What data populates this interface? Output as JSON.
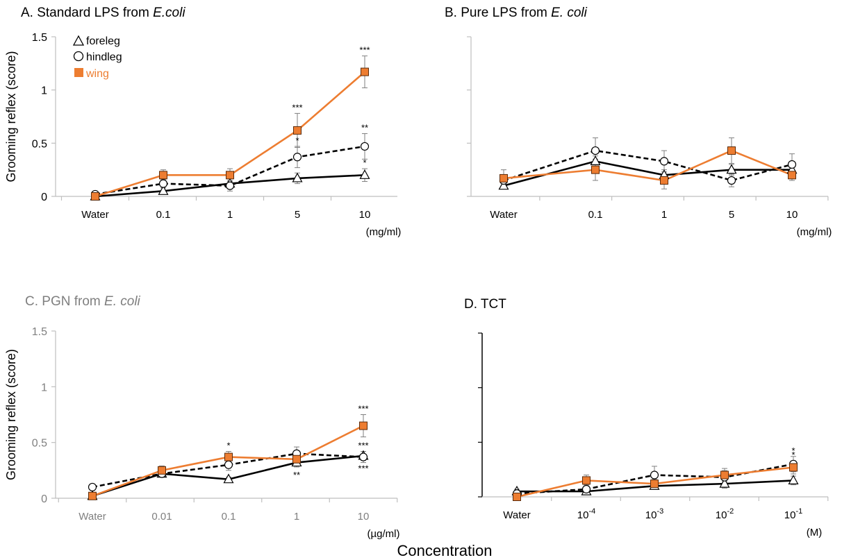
{
  "figure": {
    "x_axis_title": "Concentration",
    "colors": {
      "wing": "#ED7D31",
      "black": "#000000",
      "grey": "#7F7F7F",
      "axis": "#BFBFBF",
      "errbar": "#7F7F7F"
    }
  },
  "legend": {
    "placement": "top-left of panel A",
    "items": [
      {
        "label": "foreleg",
        "marker": "triangle-open",
        "color": "#000000"
      },
      {
        "label": "hindleg",
        "marker": "circle-open",
        "color": "#000000"
      },
      {
        "label": "wing",
        "marker": "square-filled",
        "color": "#ED7D31"
      }
    ]
  },
  "chart_data": [
    {
      "panel": "A",
      "title": "A. Standard LPS from ",
      "title_italic": "E.coli",
      "title_color": "#000000",
      "type": "line",
      "categories": [
        "Water",
        "0.1",
        "1",
        "5",
        "10"
      ],
      "unit_label": "(mg/ml)",
      "ylabel": "Grooming reflex (score)",
      "ylim": [
        0,
        1.5
      ],
      "yticks": [
        "0",
        "0.5",
        "1",
        "1.5"
      ],
      "show_y_tick_labels": true,
      "grid": false,
      "series": [
        {
          "name": "foreleg",
          "values": [
            0,
            0.05,
            0.12,
            0.17,
            0.2
          ],
          "err": [
            0,
            0.03,
            0.03,
            0.05,
            0.06
          ],
          "stars": [
            "",
            "",
            "",
            "",
            "*"
          ]
        },
        {
          "name": "hindleg",
          "values": [
            0.02,
            0.12,
            0.1,
            0.37,
            0.47
          ],
          "err": [
            0.02,
            0.04,
            0.05,
            0.1,
            0.12
          ],
          "stars": [
            "",
            "",
            "",
            "*",
            "**"
          ]
        },
        {
          "name": "wing",
          "values": [
            0,
            0.2,
            0.2,
            0.62,
            1.17
          ],
          "err": [
            0,
            0.05,
            0.06,
            0.16,
            0.15
          ],
          "stars": [
            "",
            "",
            "",
            "***",
            "***"
          ]
        }
      ]
    },
    {
      "panel": "B",
      "title": "B. Pure LPS from ",
      "title_italic": "E. coli",
      "title_color": "#000000",
      "type": "line",
      "categories": [
        "Water",
        "0.1",
        "1",
        "5",
        "10"
      ],
      "unit_label": "(mg/ml)",
      "ylabel": "",
      "ylim": [
        0,
        1.5
      ],
      "yticks": [
        "",
        "",
        "",
        ""
      ],
      "show_y_tick_labels": false,
      "grid": false,
      "series": [
        {
          "name": "foreleg",
          "values": [
            0.1,
            0.33,
            0.2,
            0.25,
            0.25
          ],
          "err": [
            0.03,
            0.05,
            0.05,
            0.05,
            0.05
          ],
          "stars": [
            "",
            "",
            "",
            "",
            ""
          ]
        },
        {
          "name": "hindleg",
          "values": [
            0.15,
            0.43,
            0.33,
            0.15,
            0.3
          ],
          "err": [
            0.05,
            0.12,
            0.1,
            0.06,
            0.1
          ],
          "stars": [
            "",
            "",
            "",
            "",
            ""
          ]
        },
        {
          "name": "wing",
          "values": [
            0.17,
            0.25,
            0.15,
            0.43,
            0.2
          ],
          "err": [
            0.08,
            0.1,
            0.08,
            0.12,
            0.05
          ],
          "stars": [
            "",
            "",
            "",
            "",
            ""
          ]
        }
      ]
    },
    {
      "panel": "C",
      "title": "C. PGN from ",
      "title_italic": "E. coli",
      "title_color": "#7F7F7F",
      "type": "line",
      "categories": [
        "Water",
        "0.01",
        "0.1",
        "1",
        "10"
      ],
      "unit_label": "(µg/ml)",
      "ylabel": "Grooming reflex (score)",
      "ylim": [
        0,
        1.5
      ],
      "yticks": [
        "0",
        "0.5",
        "1",
        "1.5"
      ],
      "show_y_tick_labels": true,
      "grid": false,
      "series": [
        {
          "name": "foreleg",
          "values": [
            0.02,
            0.22,
            0.17,
            0.32,
            0.38
          ],
          "err": [
            0.01,
            0.02,
            0.02,
            0.04,
            0.04
          ],
          "stars": [
            "",
            "",
            "",
            "**",
            "***"
          ]
        },
        {
          "name": "hindleg",
          "values": [
            0.1,
            0.22,
            0.3,
            0.4,
            0.37
          ],
          "err": [
            0.02,
            0.03,
            0.05,
            0.06,
            0.05
          ],
          "stars": [
            "",
            "",
            "",
            "",
            "***"
          ]
        },
        {
          "name": "wing",
          "values": [
            0.02,
            0.25,
            0.37,
            0.35,
            0.65
          ],
          "err": [
            0.01,
            0.04,
            0.05,
            0.05,
            0.1
          ],
          "stars": [
            "",
            "",
            "*",
            "",
            "***"
          ]
        }
      ]
    },
    {
      "panel": "D",
      "title": "D. TCT",
      "title_italic": "",
      "title_color": "#000000",
      "type": "line",
      "categories": [
        "Water",
        "10",
        "10",
        "10",
        "10"
      ],
      "category_sups": [
        "",
        "-4",
        "-3",
        "-2",
        "-1"
      ],
      "unit_label": "(M)",
      "ylabel": "",
      "ylim": [
        0,
        1.5
      ],
      "yticks": [
        "",
        "",
        "",
        ""
      ],
      "show_y_tick_labels": false,
      "grid": false,
      "series": [
        {
          "name": "foreleg",
          "values": [
            0.05,
            0.05,
            0.1,
            0.12,
            0.15
          ],
          "err": [
            0.02,
            0.02,
            0.03,
            0.04,
            0.04
          ],
          "stars": [
            "",
            "",
            "",
            "",
            ""
          ]
        },
        {
          "name": "hindleg",
          "values": [
            0.03,
            0.07,
            0.2,
            0.18,
            0.3
          ],
          "err": [
            0.02,
            0.04,
            0.08,
            0.06,
            0.07
          ],
          "stars": [
            "",
            "",
            "",
            "",
            "*"
          ]
        },
        {
          "name": "wing",
          "values": [
            0,
            0.15,
            0.12,
            0.2,
            0.27
          ],
          "err": [
            0,
            0.05,
            0.04,
            0.06,
            0.06
          ],
          "stars": [
            "",
            "",
            "",
            "",
            "*"
          ]
        }
      ]
    }
  ]
}
